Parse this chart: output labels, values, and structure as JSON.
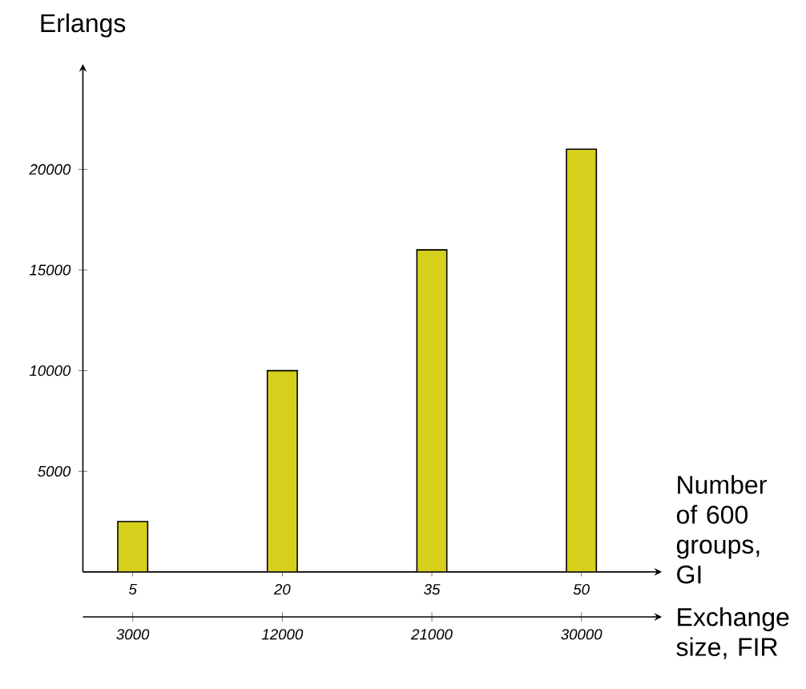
{
  "chart_data": {
    "type": "bar",
    "x": [
      5,
      20,
      35,
      50
    ],
    "values": [
      2500,
      10000,
      16000,
      21000
    ],
    "color": "#d6cf1c",
    "xlim": [
      0,
      57
    ],
    "xticks": [
      5,
      20,
      35,
      50
    ],
    "ylim": [
      0,
      24700
    ],
    "yticks": [
      5000,
      10000,
      15000,
      20000
    ],
    "x2lim": [
      0,
      34200
    ],
    "x2ticks": [
      3000,
      12000,
      21000,
      30000
    ],
    "xlabel": "Number of 600 groups, GI",
    "x2label": "Exchange size, FIR",
    "ylabel": "Erlangs",
    "grid": false
  }
}
